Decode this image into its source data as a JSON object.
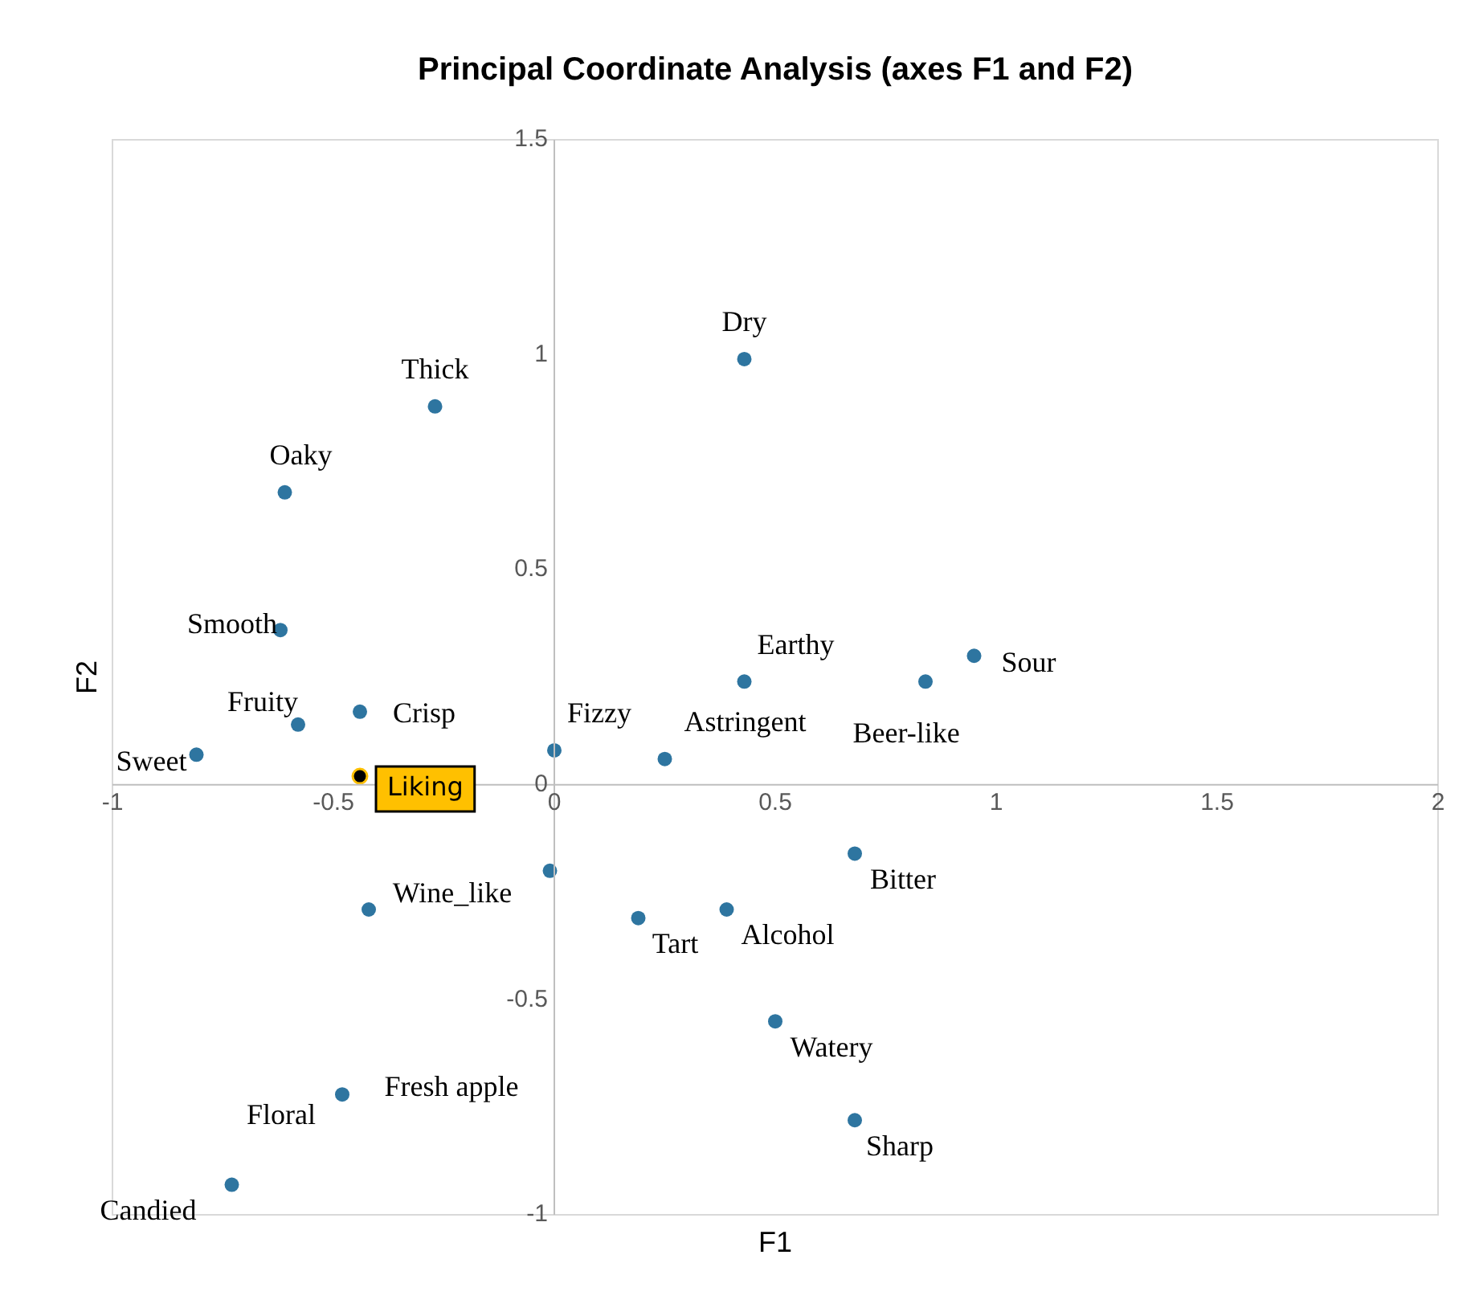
{
  "chart_data": {
    "type": "scatter",
    "title": "Principal Coordinate Analysis (axes F1 and F2)",
    "xlabel": "F1",
    "ylabel": "F2",
    "xlim": [
      -1,
      2
    ],
    "ylim": [
      -1,
      1.5
    ],
    "xticks": [
      -1,
      -0.5,
      0,
      0.5,
      1,
      1.5,
      2
    ],
    "yticks": [
      -1,
      -0.5,
      0,
      0.5,
      1,
      1.5
    ],
    "grid": false,
    "legend": false,
    "marker": "circle",
    "series": [
      {
        "color": "#2e75a0",
        "x": [
          0.43,
          -0.27,
          -0.61,
          -0.62,
          0.43,
          0.95,
          0.84,
          -0.58,
          -0.44,
          0.0,
          0.25,
          -0.81,
          0.68,
          -0.01,
          -0.42,
          0.19,
          0.39,
          0.5,
          0.68,
          -0.48,
          -0.73
        ],
        "values": [
          0.99,
          0.88,
          0.68,
          0.36,
          0.24,
          0.3,
          0.24,
          0.14,
          0.17,
          0.08,
          0.06,
          0.07,
          -0.16,
          -0.2,
          -0.29,
          -0.31,
          -0.29,
          -0.55,
          -0.78,
          -0.72,
          -0.93
        ],
        "value_labels": [
          "Dry",
          "Thick",
          "Oaky",
          "Smooth",
          "Earthy",
          "Sour",
          "Beer-like",
          "Fruity",
          "Crisp",
          "Fizzy",
          "Astringent",
          "Sweet",
          "Bitter",
          null,
          "Wine_like",
          "Tart",
          "Alcohol",
          "Watery",
          "Sharp",
          "Fresh apple",
          "Candied"
        ]
      },
      {
        "color": "#000000",
        "x": [
          -0.44
        ],
        "values": [
          0.02
        ],
        "value_labels": [
          "Liking"
        ]
      }
    ],
    "annotations": [
      "Floral"
    ]
  }
}
